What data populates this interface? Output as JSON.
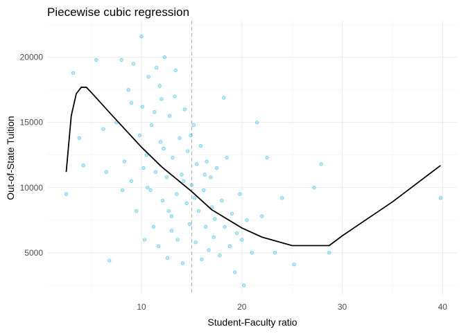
{
  "chart_data": {
    "type": "scatter",
    "title": "Piecewise cubic regression",
    "x_label": "Student-Faculty ratio",
    "y_label": "Out-of-State Tuition",
    "xlim": [
      0.6,
      41.5
    ],
    "ylim": [
      1800,
      22800
    ],
    "xticks": [
      10,
      20,
      30,
      40
    ],
    "yticks": [
      5000,
      10000,
      15000,
      20000
    ],
    "x_minor_grid": [
      5,
      15,
      25,
      35
    ],
    "y_minor_grid": [
      2500,
      7500,
      12500,
      17500,
      22500
    ],
    "grid": true,
    "vline": 15,
    "points": {
      "color": "#29b6e0",
      "x": [
        2.5,
        3.2,
        3.8,
        4.2,
        5.5,
        6.2,
        6.8,
        7.5,
        8.0,
        8.3,
        8.7,
        9.0,
        9.2,
        9.5,
        9.8,
        10.0,
        10.1,
        10.3,
        10.5,
        10.7,
        10.9,
        11.0,
        11.2,
        11.4,
        11.5,
        11.7,
        11.9,
        12.0,
        12.1,
        12.3,
        12.5,
        12.6,
        12.8,
        13.0,
        13.1,
        13.3,
        13.5,
        13.6,
        13.8,
        14.0,
        14.1,
        14.3,
        14.5,
        14.6,
        14.8,
        15.0,
        15.2,
        15.4,
        15.5,
        15.7,
        15.9,
        16.0,
        16.2,
        16.4,
        16.5,
        16.7,
        16.9,
        17.0,
        17.2,
        17.5,
        17.8,
        18.0,
        18.3,
        18.5,
        18.8,
        19.0,
        19.3,
        19.5,
        19.8,
        20.2,
        20.5,
        21.0,
        21.5,
        22.0,
        22.5,
        23.3,
        24.0,
        25.2,
        27.2,
        27.9,
        28.7,
        39.8,
        9.0,
        10.2,
        11.3,
        12.2,
        13.4,
        14.2,
        15.3,
        16.3,
        17.3,
        18.2,
        6.5,
        8.1,
        12.7,
        20.0,
        11.8,
        14.9,
        10.6,
        13.0
      ],
      "y": [
        9500,
        18800,
        13800,
        11700,
        19800,
        14500,
        4400,
        15000,
        19800,
        12000,
        17500,
        10500,
        19500,
        8200,
        14000,
        21600,
        16200,
        6000,
        12500,
        18500,
        9800,
        14800,
        7000,
        11200,
        19200,
        5500,
        13500,
        16800,
        9000,
        20000,
        10800,
        4600,
        15500,
        7800,
        12300,
        17000,
        9500,
        6000,
        13800,
        11000,
        4200,
        16000,
        8800,
        12800,
        7200,
        10200,
        14800,
        5800,
        11800,
        8200,
        13200,
        4500,
        9800,
        7000,
        12000,
        5200,
        10800,
        8500,
        6200,
        11500,
        4800,
        9000,
        7000,
        12300,
        5500,
        8000,
        3500,
        6500,
        9500,
        2500,
        7500,
        5000,
        15000,
        7800,
        12300,
        5000,
        9200,
        4100,
        10000,
        11800,
        5000,
        9200,
        16500,
        11500,
        15800,
        13000,
        19000,
        10500,
        9200,
        11000,
        7600,
        16900,
        11200,
        9800,
        8200,
        6000,
        17800,
        14000,
        10000,
        6700
      ]
    },
    "fit": {
      "color": "#000000",
      "x": [
        2.5,
        3,
        3.5,
        4,
        4.5,
        5,
        7,
        10,
        12,
        15,
        17,
        20,
        22,
        25,
        28.7,
        30,
        35,
        39.8
      ],
      "y": [
        11200,
        15500,
        17200,
        17700,
        17700,
        17300,
        15600,
        13100,
        11600,
        9700,
        8300,
        6900,
        6200,
        5550,
        5550,
        6300,
        8900,
        11700
      ]
    }
  }
}
